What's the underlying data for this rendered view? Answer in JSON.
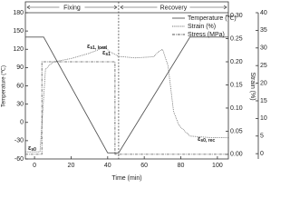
{
  "chart_data": {
    "type": "line",
    "x_label": "Time (min)",
    "y_label": "Temperature (℃)",
    "y2_label": "Strain (%)",
    "phases": [
      "Fixing",
      "Recovery"
    ],
    "xlim": [
      -5,
      106
    ],
    "xticks": [
      0,
      20,
      40,
      60,
      80,
      100
    ],
    "ylim": [
      -60,
      180
    ],
    "yticks": [
      -60,
      -30,
      0,
      30,
      60,
      90,
      120,
      150,
      180
    ],
    "y2lim": [
      -1.5,
      40
    ],
    "y2ticks": [
      0,
      5,
      10,
      15,
      20,
      25,
      30,
      35,
      40
    ],
    "y3lim": [
      -0.01,
      0.306
    ],
    "y3ticks": [
      {
        "value": 0,
        "label": "0.00"
      },
      {
        "value": 0.05,
        "label": "0.05"
      },
      {
        "value": 0.1,
        "label": "0.10"
      },
      {
        "value": 0.15,
        "label": "0.15"
      },
      {
        "value": 0.2,
        "label": "0.20"
      },
      {
        "value": 0.25,
        "label": "0.25"
      },
      {
        "value": 0.3,
        "label": "0.30"
      }
    ],
    "phase_boundary": 46,
    "series": [
      {
        "name": "Temperature (℃)",
        "color": "#555555",
        "style": "solid",
        "axis": "y",
        "x": [
          -5,
          5,
          40,
          46,
          85,
          106
        ],
        "values": [
          140,
          140,
          -50,
          -50,
          140,
          140
        ]
      },
      {
        "name": "Strain (%)",
        "color": "#555555",
        "style": "dotted",
        "axis": "y2",
        "x": [
          -5,
          3,
          4,
          6,
          10,
          20,
          30,
          35,
          38,
          41,
          46,
          55,
          65,
          68,
          70,
          73,
          76,
          79,
          85,
          95,
          106
        ],
        "values": [
          0.5,
          0.5,
          8,
          24,
          26,
          27,
          28.5,
          29.5,
          30.5,
          29,
          27.6,
          27.2,
          27.5,
          29,
          29.6,
          25,
          12,
          8,
          5,
          4.6,
          4.5
        ]
      },
      {
        "name": "Stress (MPa)",
        "color": "#555555",
        "style": "dashdot",
        "axis": "y3",
        "x": [
          -5,
          4,
          4,
          44,
          44,
          106
        ],
        "values": [
          0,
          0,
          0.2,
          0.2,
          0,
          0
        ]
      }
    ],
    "annotations": [
      {
        "base": "ε",
        "sub": "s1, load"
      },
      {
        "base": "ε",
        "sub": "s1"
      },
      {
        "base": "ε",
        "sub": "s0"
      },
      {
        "base": "ε",
        "sub": "s0, rec"
      }
    ]
  }
}
